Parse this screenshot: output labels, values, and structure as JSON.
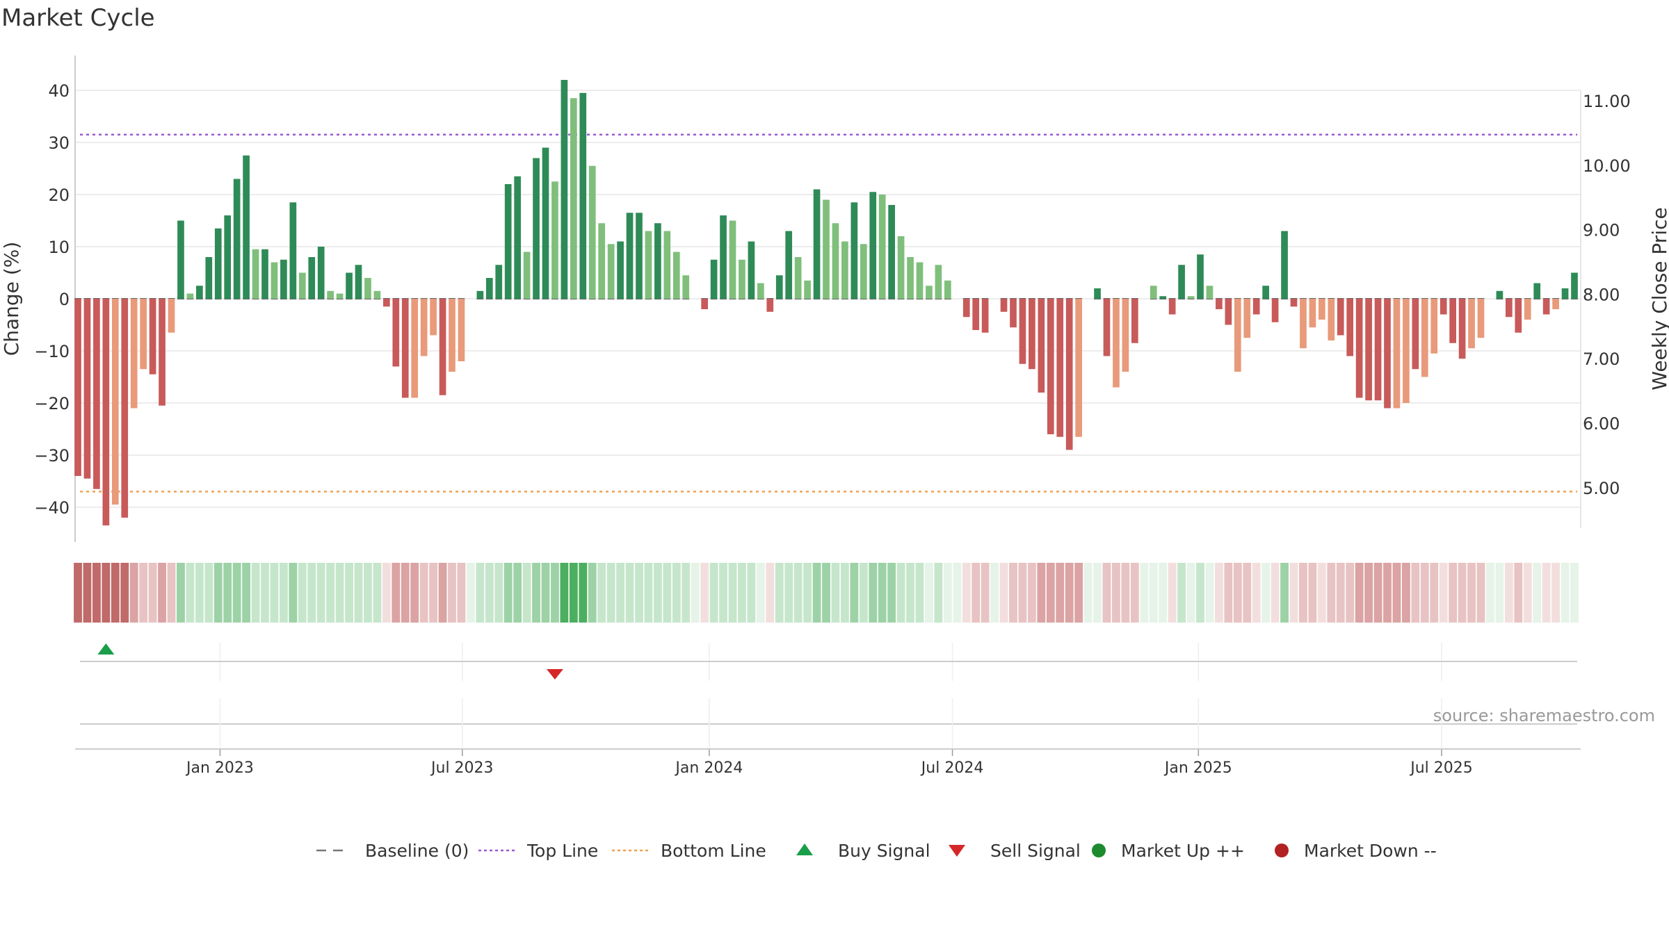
{
  "title": "Market Cycle",
  "source_text": "source: sharemaestro.com",
  "colors": {
    "up_strong": "#2e8b57",
    "up_light": "#7fbf7b",
    "down_strong": "#c85a5a",
    "down_light": "#e89a7a",
    "top_line": "#9b59d0",
    "bottom_line": "#f0a050",
    "buy": "#1a9e4a",
    "sell": "#d62728",
    "market_up": "#1e8a2e",
    "market_down": "#b22222"
  },
  "chart_data": {
    "type": "bar",
    "title": "Market Cycle",
    "ylabel_left": "Change (%)",
    "ylabel_right": "Weekly Close Price",
    "ylim_left": [
      -47,
      47
    ],
    "ylim_right": [
      4.2,
      11.5
    ],
    "yticks_left": [
      "40",
      "30",
      "20",
      "10",
      "0",
      "−10",
      "−20",
      "−30",
      "−40"
    ],
    "yticks_right": [
      "11.00",
      "10.00",
      "9.00",
      "8.00",
      "7.00",
      "6.00",
      "5.00"
    ],
    "x_ticks": [
      {
        "label": "Jan 2023",
        "week": 15.2
      },
      {
        "label": "Jul 2023",
        "week": 41.1
      },
      {
        "label": "Jan 2024",
        "week": 67.5
      },
      {
        "label": "Jul 2024",
        "week": 93.5
      },
      {
        "label": "Jan 2025",
        "week": 119.8
      },
      {
        "label": "Jul 2025",
        "week": 145.8
      }
    ],
    "top_line": 31.5,
    "bottom_line": -37,
    "baseline": 0,
    "values": [
      -34,
      -34.5,
      -36.5,
      -43.5,
      -39.5,
      -42,
      -21,
      -13.5,
      -14.5,
      -20.5,
      -6.5,
      15,
      1,
      2.5,
      8,
      13.5,
      16,
      23,
      27.5,
      9.5,
      9.5,
      7,
      7.5,
      18.5,
      5,
      8,
      10,
      1.5,
      1,
      5,
      6.5,
      4,
      1.5,
      -1.5,
      -13,
      -19,
      -19,
      -11,
      -7,
      -18.5,
      -14,
      -12,
      0,
      1.5,
      4,
      6.5,
      22,
      23.5,
      9,
      27,
      29,
      22.5,
      42,
      38.5,
      39.5,
      25.5,
      14.5,
      10.5,
      11,
      16.5,
      16.5,
      13,
      14.5,
      13,
      9,
      4.5,
      0,
      -2,
      7.5,
      16,
      15,
      7.5,
      11,
      3,
      -2.5,
      4.5,
      13,
      8,
      3.5,
      21,
      19,
      14.5,
      11,
      18.5,
      10.5,
      20.5,
      20,
      18,
      12,
      8,
      7,
      2.5,
      6.5,
      3.5,
      0,
      -3.5,
      -6,
      -6.5,
      0,
      -2.5,
      -5.5,
      -12.5,
      -13.5,
      -18,
      -26,
      -26.5,
      -29,
      -26.5,
      0,
      2,
      -11,
      -17,
      -14,
      -8.5,
      0,
      2.5,
      0.5,
      -3,
      6.5,
      0.5,
      8.5,
      2.5,
      -2,
      -5,
      -14,
      -7.5,
      -3,
      2.5,
      -4.5,
      13,
      -1.5,
      -9.5,
      -5.5,
      -4,
      -8,
      -7,
      -11,
      -19,
      -19.5,
      -19.5,
      -21,
      -21,
      -20,
      -13.5,
      -15,
      -10.5,
      -3,
      -8.5,
      -11.5,
      -9.5,
      -7.5,
      0,
      1.5,
      -3.5,
      -6.5,
      -4,
      3,
      -3,
      -2,
      2,
      5
    ],
    "light_shade": [
      0,
      0,
      0,
      0,
      1,
      0,
      1,
      1,
      0,
      0,
      1,
      0,
      1,
      0,
      0,
      0,
      0,
      0,
      0,
      1,
      0,
      1,
      0,
      0,
      1,
      0,
      0,
      1,
      1,
      0,
      0,
      1,
      1,
      0,
      0,
      0,
      1,
      1,
      1,
      0,
      1,
      1,
      0,
      0,
      0,
      0,
      0,
      0,
      1,
      0,
      0,
      1,
      0,
      1,
      0,
      1,
      1,
      1,
      0,
      0,
      0,
      1,
      0,
      1,
      1,
      1,
      0,
      0,
      0,
      0,
      1,
      1,
      0,
      1,
      0,
      0,
      0,
      1,
      1,
      0,
      1,
      1,
      1,
      0,
      1,
      0,
      1,
      0,
      1,
      1,
      1,
      1,
      1,
      1,
      0,
      0,
      0,
      0,
      0,
      0,
      0,
      0,
      0,
      0,
      0,
      0,
      0,
      1,
      0,
      0,
      0,
      1,
      1,
      0,
      0,
      1,
      0,
      0,
      0,
      1,
      0,
      1,
      0,
      0,
      1,
      1,
      0,
      0,
      0,
      0,
      0,
      1,
      1,
      1,
      1,
      0,
      0,
      0,
      0,
      0,
      0,
      1,
      1,
      0,
      1,
      1,
      0,
      0,
      0,
      1,
      1,
      0,
      0,
      0,
      0,
      1,
      0,
      0,
      1,
      0,
      0
    ],
    "heat_strength": [
      3,
      3,
      3,
      3,
      3,
      3,
      2,
      1,
      1,
      2,
      1,
      2,
      1,
      1,
      1,
      2,
      2,
      2,
      2,
      1,
      1,
      1,
      1,
      2,
      1,
      1,
      1,
      1,
      1,
      1,
      1,
      1,
      1,
      0,
      2,
      2,
      2,
      1,
      1,
      2,
      1,
      1,
      0,
      1,
      1,
      1,
      2,
      2,
      1,
      2,
      2,
      2,
      3,
      3,
      3,
      2,
      1,
      1,
      1,
      1,
      1,
      1,
      1,
      1,
      1,
      1,
      0,
      0,
      1,
      1,
      1,
      1,
      1,
      0,
      0,
      1,
      1,
      1,
      1,
      2,
      2,
      1,
      1,
      2,
      1,
      2,
      2,
      2,
      1,
      1,
      1,
      0,
      1,
      0,
      0,
      0,
      1,
      1,
      0,
      0,
      1,
      1,
      1,
      2,
      2,
      2,
      2,
      2,
      0,
      0,
      1,
      1,
      1,
      1,
      0,
      0,
      0,
      0,
      1,
      0,
      1,
      0,
      0,
      1,
      1,
      1,
      0,
      0,
      0,
      2,
      0,
      1,
      1,
      0,
      1,
      1,
      1,
      2,
      2,
      2,
      2,
      2,
      2,
      1,
      1,
      1,
      0,
      1,
      1,
      1,
      1,
      0,
      0,
      0,
      1,
      0,
      0,
      0,
      0,
      0,
      0
    ],
    "buy_signals": [
      {
        "week": 3
      }
    ],
    "sell_signals": [
      {
        "week": 51
      }
    ]
  },
  "legend": [
    {
      "label": "Baseline (0)",
      "kind": "dash-line",
      "color": "#777777"
    },
    {
      "label": "Top Line",
      "kind": "dot-line",
      "color": "#9b59d0"
    },
    {
      "label": "Bottom Line",
      "kind": "dot-line",
      "color": "#f0a050"
    },
    {
      "label": "Buy Signal",
      "kind": "up-triangle",
      "color": "#1a9e4a"
    },
    {
      "label": "Sell Signal",
      "kind": "down-triangle",
      "color": "#d62728"
    },
    {
      "label": "Market Up ++",
      "kind": "circle",
      "color": "#1e8a2e"
    },
    {
      "label": "Market Down --",
      "kind": "circle",
      "color": "#b22222"
    }
  ]
}
